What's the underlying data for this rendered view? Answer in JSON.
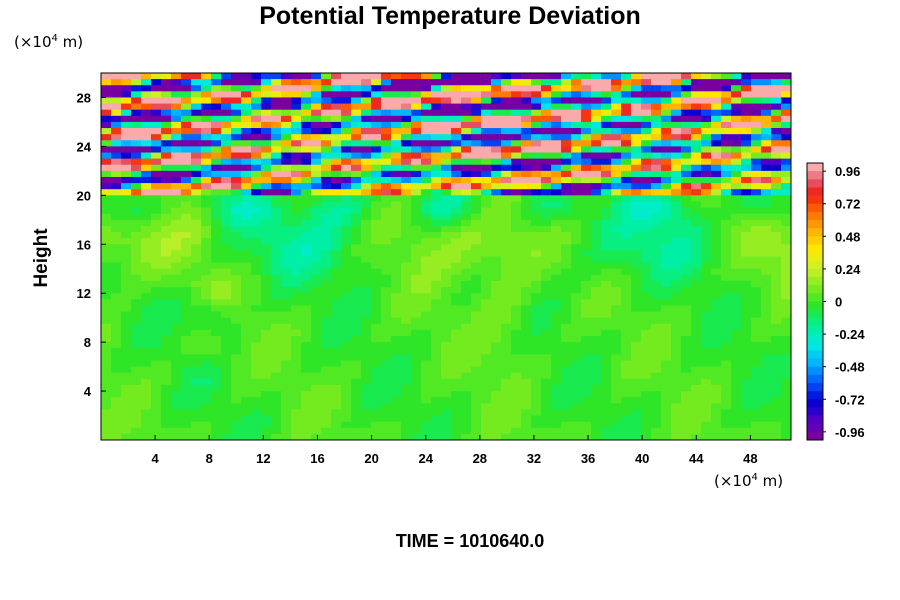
{
  "chart_data": {
    "type": "heatmap",
    "title": "Potential Temperature Deviation",
    "ylabel": "Height",
    "xlabel": "",
    "x_unit": {
      "prefix": "(×10",
      "exp": "4",
      "suffix": " m)"
    },
    "y_unit": {
      "prefix": "(×10",
      "exp": "4",
      "suffix": " m)"
    },
    "xlim": [
      0,
      51
    ],
    "ylim": [
      0,
      30
    ],
    "x_ticks": [
      4,
      8,
      12,
      16,
      20,
      24,
      28,
      32,
      36,
      40,
      44,
      48
    ],
    "y_ticks": [
      4,
      8,
      12,
      16,
      20,
      24,
      28
    ],
    "colorbar": {
      "range": [
        -1.02,
        1.02
      ],
      "labels": [
        "0.96",
        "0.72",
        "0.48",
        "0.24",
        "0",
        "-0.24",
        "-0.48",
        "-0.72",
        "-0.96"
      ],
      "label_values": [
        0.96,
        0.72,
        0.48,
        0.24,
        0,
        -0.24,
        -0.48,
        -0.72,
        -0.96
      ],
      "levels": 34
    },
    "regions": {
      "boundary_height": 20,
      "lower_field_range": [
        -0.3,
        0.35
      ],
      "upper_field_range": [
        -1.02,
        1.02
      ]
    },
    "annotation": "TIME = 1010640.0"
  }
}
